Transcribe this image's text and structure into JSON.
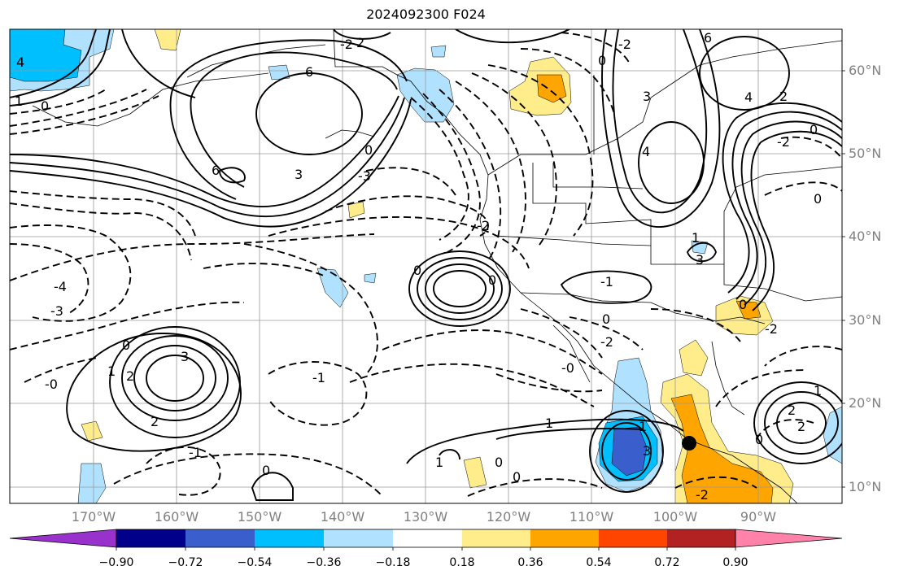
{
  "title": "2024092300 F024",
  "lat_labels": [
    "60°N",
    "50°N",
    "40°N",
    "30°N",
    "20°N",
    "10°N"
  ],
  "lon_labels": [
    "170°W",
    "160°W",
    "150°W",
    "140°W",
    "130°W",
    "120°W",
    "110°W",
    "100°W",
    "90°W"
  ],
  "colorbar": {
    "ticks": [
      "−0.90",
      "−0.72",
      "−0.54",
      "−0.36",
      "−0.18",
      "0.18",
      "0.36",
      "0.54",
      "0.72",
      "0.90"
    ],
    "colors": [
      "#9932cc",
      "#00008b",
      "#3a5fcd",
      "#00bfff",
      "#b0e2ff",
      "#ffffff",
      "#ffec8b",
      "#ffa500",
      "#ff4500",
      "#b22222",
      "#ff82ab"
    ]
  },
  "contour_labels": {
    "pacific_low": "-2",
    "gulf_alaska_high": "6",
    "high_3_north": "3",
    "zero_n": "0",
    "nw_4": "4",
    "nw_1": "1",
    "nw_0": "0",
    "alaska_2": "2",
    "hudson_6": "6",
    "yukon_0": "0",
    "yukon_2": "-2",
    "canada_3": "3",
    "canada_6": "6",
    "canada_4": "4",
    "plains_1": "-1",
    "plains_3": "3",
    "east_0": "0",
    "east_2": "-2",
    "east_4": "4",
    "cent_0": "0",
    "cent_2": "-2",
    "c_ne_2": "2",
    "trough_3": "-3",
    "trough_1": "1",
    "west_4": "-4",
    "west_3": "-3",
    "west_0": "-0",
    "hawaii_1": "1",
    "hawaii_2": "2",
    "hawaii_3": "3",
    "hawaii_0": "0",
    "hawaii_2b": "2",
    "south_1": "-1",
    "south_0": "0",
    "mexico_0": "0",
    "mexico_2": "-2",
    "pac_1": "1",
    "pac_0": "0",
    "pac_0b": "0",
    "pac_1b": "-1",
    "pac_2": "-2",
    "ca_0": "0",
    "ca_2": "-2",
    "c_0": "0",
    "low_1": "1",
    "low_0": "-0",
    "e_2": "2",
    "e_0": "0",
    "e_1": "1",
    "ep_1": "1",
    "ep_2": "2",
    "ep_3": "3"
  }
}
